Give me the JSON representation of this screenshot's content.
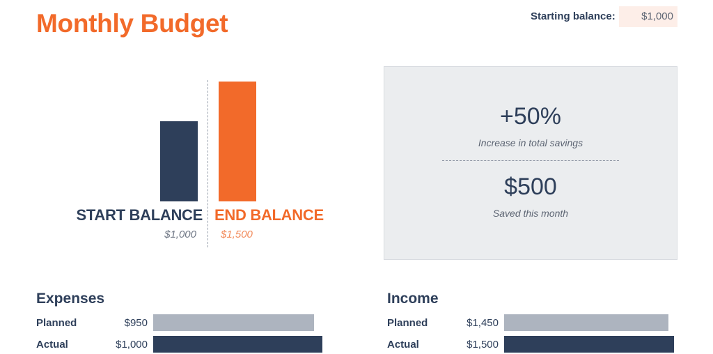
{
  "header": {
    "title": "Monthly Budget",
    "starting_balance_label": "Starting balance:",
    "starting_balance_value": "$1,000"
  },
  "balance_chart": {
    "start": {
      "label": "START BALANCE",
      "value_text": "$1,000",
      "value": 1000,
      "color": "#2e3f5a"
    },
    "end": {
      "label": "END BALANCE",
      "value_text": "$1,500",
      "value": 1500,
      "color": "#f26a2a"
    }
  },
  "summary": {
    "increase_value": "+50%",
    "increase_caption": "Increase in total savings",
    "saved_value": "$500",
    "saved_caption": "Saved this month"
  },
  "expenses": {
    "title": "Expenses",
    "rows": [
      {
        "label": "Planned",
        "value_text": "$950",
        "value": 950
      },
      {
        "label": "Actual",
        "value_text": "$1,000",
        "value": 1000
      }
    ]
  },
  "income": {
    "title": "Income",
    "rows": [
      {
        "label": "Planned",
        "value_text": "$1,450",
        "value": 1450
      },
      {
        "label": "Actual",
        "value_text": "$1,500",
        "value": 1500
      }
    ]
  },
  "colors": {
    "accent": "#f26a2a",
    "navy": "#2e3f5a",
    "gray_bar": "#adb4bf"
  }
}
